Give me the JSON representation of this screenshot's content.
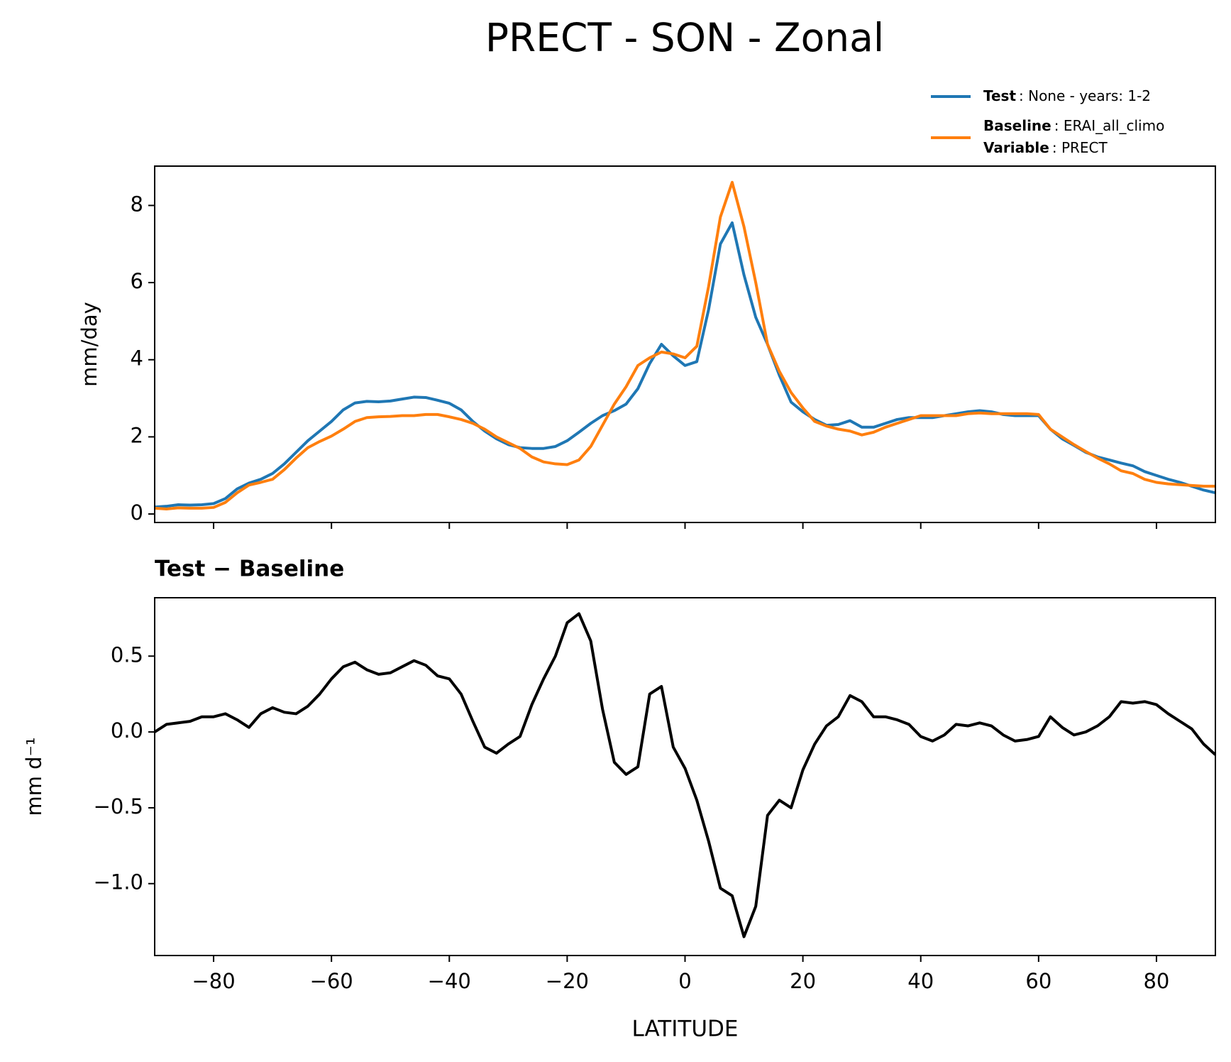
{
  "title": "PRECT - SON - Zonal",
  "chart_data": [
    {
      "type": "line",
      "x": [
        -90,
        -88,
        -86,
        -84,
        -82,
        -80,
        -78,
        -76,
        -74,
        -72,
        -70,
        -68,
        -66,
        -64,
        -62,
        -60,
        -58,
        -56,
        -54,
        -52,
        -50,
        -48,
        -46,
        -44,
        -42,
        -40,
        -38,
        -36,
        -34,
        -32,
        -30,
        -28,
        -26,
        -24,
        -22,
        -20,
        -18,
        -16,
        -14,
        -12,
        -10,
        -8,
        -6,
        -4,
        -2,
        0,
        2,
        4,
        6,
        8,
        10,
        12,
        14,
        16,
        18,
        20,
        22,
        24,
        26,
        28,
        30,
        32,
        34,
        36,
        38,
        40,
        42,
        44,
        46,
        48,
        50,
        52,
        54,
        56,
        58,
        60,
        62,
        64,
        66,
        68,
        70,
        72,
        74,
        76,
        78,
        80,
        82,
        84,
        86,
        88,
        90
      ],
      "y_label": "mm/day",
      "series": [
        {
          "name": "Test",
          "description": ": None - years: 1-2",
          "color": "#1f77b4",
          "values": [
            0.18,
            0.2,
            0.24,
            0.23,
            0.24,
            0.27,
            0.4,
            0.65,
            0.8,
            0.9,
            1.05,
            1.3,
            1.6,
            1.9,
            2.15,
            2.4,
            2.7,
            2.88,
            2.92,
            2.91,
            2.93,
            2.98,
            3.03,
            3.02,
            2.95,
            2.87,
            2.7,
            2.4,
            2.15,
            1.95,
            1.8,
            1.72,
            1.7,
            1.7,
            1.75,
            1.9,
            2.12,
            2.35,
            2.55,
            2.68,
            2.85,
            3.25,
            3.9,
            4.4,
            4.1,
            3.85,
            3.95,
            5.3,
            7.0,
            7.55,
            6.2,
            5.1,
            4.4,
            3.6,
            2.9,
            2.65,
            2.45,
            2.3,
            2.32,
            2.42,
            2.25,
            2.25,
            2.35,
            2.45,
            2.5,
            2.5,
            2.5,
            2.55,
            2.6,
            2.65,
            2.68,
            2.65,
            2.58,
            2.55,
            2.55,
            2.55,
            2.2,
            1.95,
            1.78,
            1.6,
            1.48,
            1.4,
            1.32,
            1.25,
            1.1,
            1.0,
            0.9,
            0.82,
            0.72,
            0.62,
            0.55
          ]
        },
        {
          "name": "Baseline",
          "description": ": ERAI_all_climo",
          "color": "#ff7f0e",
          "values": [
            0.15,
            0.13,
            0.16,
            0.15,
            0.15,
            0.17,
            0.3,
            0.55,
            0.75,
            0.82,
            0.9,
            1.15,
            1.45,
            1.72,
            1.88,
            2.02,
            2.2,
            2.4,
            2.5,
            2.52,
            2.53,
            2.55,
            2.55,
            2.58,
            2.58,
            2.52,
            2.45,
            2.35,
            2.2,
            2.0,
            1.85,
            1.7,
            1.48,
            1.35,
            1.3,
            1.28,
            1.4,
            1.75,
            2.3,
            2.85,
            3.3,
            3.85,
            4.05,
            4.2,
            4.15,
            4.05,
            4.35,
            5.9,
            7.7,
            8.6,
            7.45,
            6.0,
            4.4,
            3.7,
            3.15,
            2.75,
            2.4,
            2.28,
            2.2,
            2.15,
            2.05,
            2.12,
            2.25,
            2.35,
            2.45,
            2.55,
            2.55,
            2.55,
            2.55,
            2.6,
            2.62,
            2.6,
            2.6,
            2.6,
            2.6,
            2.58,
            2.2,
            2.0,
            1.8,
            1.62,
            1.45,
            1.3,
            1.12,
            1.05,
            0.9,
            0.82,
            0.78,
            0.76,
            0.74,
            0.72,
            0.72
          ]
        }
      ],
      "legend_note": {
        "name": "Variable",
        "description": ": PRECT"
      },
      "xlim": [
        -90,
        90
      ],
      "ylim": [
        -0.22,
        9.02
      ],
      "yticks": [
        0,
        2,
        4,
        6,
        8
      ]
    },
    {
      "type": "line",
      "title": "Test − Baseline",
      "x": [
        -90,
        -88,
        -86,
        -84,
        -82,
        -80,
        -78,
        -76,
        -74,
        -72,
        -70,
        -68,
        -66,
        -64,
        -62,
        -60,
        -58,
        -56,
        -54,
        -52,
        -50,
        -48,
        -46,
        -44,
        -42,
        -40,
        -38,
        -36,
        -34,
        -32,
        -30,
        -28,
        -26,
        -24,
        -22,
        -20,
        -18,
        -16,
        -14,
        -12,
        -10,
        -8,
        -6,
        -4,
        -2,
        0,
        2,
        4,
        6,
        8,
        10,
        12,
        14,
        16,
        18,
        20,
        22,
        24,
        26,
        28,
        30,
        32,
        34,
        36,
        38,
        40,
        42,
        44,
        46,
        48,
        50,
        52,
        54,
        56,
        58,
        60,
        62,
        64,
        66,
        68,
        70,
        72,
        74,
        76,
        78,
        80,
        82,
        84,
        86,
        88,
        90
      ],
      "x_label": "LATITUDE",
      "y_label": "mm d⁻¹",
      "series": [
        {
          "color": "#000000",
          "values": [
            0.0,
            0.05,
            0.06,
            0.07,
            0.1,
            0.1,
            0.12,
            0.08,
            0.03,
            0.12,
            0.16,
            0.13,
            0.12,
            0.17,
            0.25,
            0.35,
            0.43,
            0.46,
            0.41,
            0.38,
            0.39,
            0.43,
            0.47,
            0.44,
            0.37,
            0.35,
            0.25,
            0.07,
            -0.1,
            -0.14,
            -0.08,
            -0.03,
            0.18,
            0.35,
            0.5,
            0.72,
            0.78,
            0.6,
            0.15,
            -0.2,
            -0.28,
            -0.23,
            0.25,
            0.3,
            -0.1,
            -0.24,
            -0.45,
            -0.72,
            -1.03,
            -1.08,
            -1.35,
            -1.15,
            -0.55,
            -0.45,
            -0.5,
            -0.25,
            -0.08,
            0.04,
            0.1,
            0.24,
            0.2,
            0.1,
            0.1,
            0.08,
            0.05,
            -0.03,
            -0.06,
            -0.02,
            0.05,
            0.04,
            0.06,
            0.04,
            -0.02,
            -0.06,
            -0.05,
            -0.03,
            0.1,
            0.03,
            -0.02,
            0.0,
            0.04,
            0.1,
            0.2,
            0.19,
            0.2,
            0.18,
            0.12,
            0.07,
            0.02,
            -0.08,
            -0.15
          ]
        }
      ],
      "xlim": [
        -90,
        90
      ],
      "xticks": [
        {
          "value": -80,
          "label": "−80"
        },
        {
          "value": -60,
          "label": "−60"
        },
        {
          "value": -40,
          "label": "−40"
        },
        {
          "value": -20,
          "label": "−20"
        },
        0,
        20,
        40,
        60,
        80
      ],
      "ylim": [
        -1.474,
        0.885
      ],
      "yticks": [
        {
          "value": 0.5,
          "label": "0.5"
        },
        {
          "value": 0,
          "label": "0.0"
        },
        {
          "value": -0.5,
          "label": "−0.5"
        },
        {
          "value": -1,
          "label": "−1.0"
        }
      ]
    }
  ]
}
